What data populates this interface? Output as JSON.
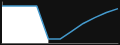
{
  "chart_data": {
    "type": "line",
    "x": [
      0,
      1,
      2,
      3,
      4,
      5,
      6,
      7,
      8,
      9,
      10
    ],
    "series": [
      {
        "type": "area",
        "color": "#ffffff",
        "values": [
          0.95,
          0.95,
          0.95,
          0.95,
          0.1,
          null,
          null,
          null,
          null,
          null,
          null
        ]
      },
      {
        "type": "line",
        "color": "#4499cc",
        "values": [
          0.95,
          0.95,
          0.95,
          0.95,
          0.1,
          0.1,
          0.3,
          0.5,
          0.65,
          0.78,
          0.88
        ]
      }
    ],
    "xlim": [
      0.0,
      10.0
    ],
    "ylim": [
      0.0,
      1.05
    ],
    "tick_labels": false
  }
}
